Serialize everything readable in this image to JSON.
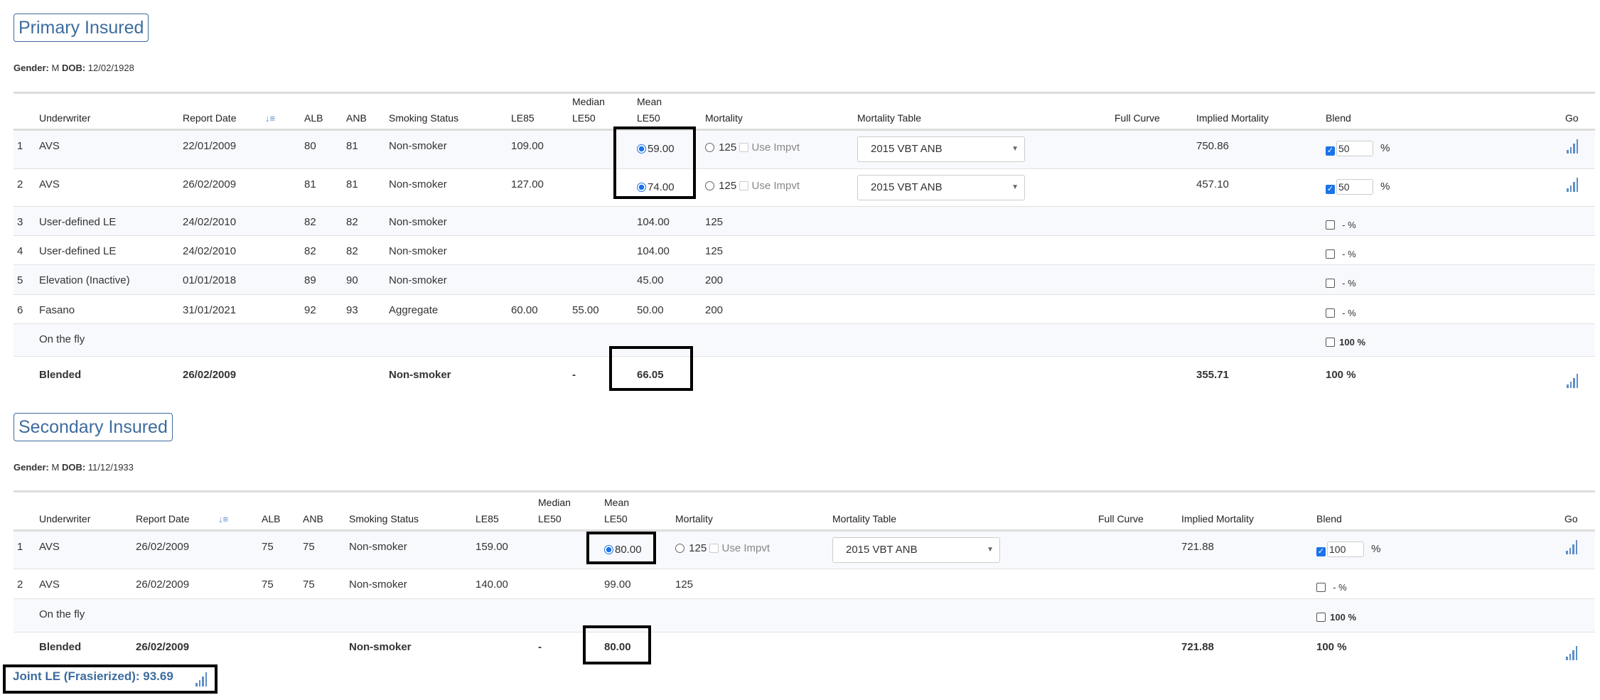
{
  "headers": {
    "underwriter": "Underwriter",
    "report_date": "Report Date",
    "alb": "ALB",
    "anb": "ANB",
    "smoking": "Smoking Status",
    "le85": "LE85",
    "median_1": "Median",
    "median_2": "LE50",
    "mean_1": "Mean",
    "mean_2": "LE50",
    "mortality": "Mortality",
    "mortality_table": "Mortality Table",
    "full_curve": "Full Curve",
    "implied": "Implied Mortality",
    "blend": "Blend",
    "go": "Go"
  },
  "icons": {
    "sort": "sort-descending-icon",
    "go": "bar-chart-icon",
    "select": "caret-down-icon"
  },
  "colors": {
    "accent": "#3d6c9e",
    "checkbox": "#1a73e8",
    "chart_icon": "#5b8fc7"
  },
  "use_impvt_label": "Use Impvt",
  "percent": "%",
  "sections": [
    {
      "title": "Primary Insured",
      "gender_label": "Gender:",
      "gender": "M",
      "dob_label": "DOB:",
      "dob": "12/02/1928",
      "rows": [
        {
          "idx": "1",
          "underwriter": "AVS",
          "report_date": "22/01/2009",
          "alb": "80",
          "anb": "81",
          "smoking": "Non-smoker",
          "le85": "109.00",
          "median": "",
          "mean": "59.00",
          "mean_radio": true,
          "mortality": "125",
          "mortality_radio": true,
          "use_impvt": true,
          "mortality_table": "2015 VBT ANB",
          "implied": "750.86",
          "blend_checked": true,
          "blend_value": "50",
          "go": true
        },
        {
          "idx": "2",
          "underwriter": "AVS",
          "report_date": "26/02/2009",
          "alb": "81",
          "anb": "81",
          "smoking": "Non-smoker",
          "le85": "127.00",
          "median": "",
          "mean": "74.00",
          "mean_radio": true,
          "mortality": "125",
          "mortality_radio": true,
          "use_impvt": true,
          "mortality_table": "2015 VBT ANB",
          "implied": "457.10",
          "blend_checked": true,
          "blend_value": "50",
          "go": true
        },
        {
          "idx": "3",
          "underwriter": "User-defined LE",
          "report_date": "24/02/2010",
          "alb": "82",
          "anb": "82",
          "smoking": "Non-smoker",
          "le85": "",
          "median": "",
          "mean": "104.00",
          "mortality": "125",
          "blend_checked": false,
          "blend_text": "- %"
        },
        {
          "idx": "4",
          "underwriter": "User-defined LE",
          "report_date": "24/02/2010",
          "alb": "82",
          "anb": "82",
          "smoking": "Non-smoker",
          "le85": "",
          "median": "",
          "mean": "104.00",
          "mortality": "125",
          "blend_checked": false,
          "blend_text": "- %"
        },
        {
          "idx": "5",
          "underwriter": "Elevation (Inactive)",
          "report_date": "01/01/2018",
          "alb": "89",
          "anb": "90",
          "smoking": "Non-smoker",
          "le85": "",
          "median": "",
          "mean": "45.00",
          "mortality": "200",
          "blend_checked": false,
          "blend_text": "- %"
        },
        {
          "idx": "6",
          "underwriter": "Fasano",
          "report_date": "31/01/2021",
          "alb": "92",
          "anb": "93",
          "smoking": "Aggregate",
          "le85": "60.00",
          "median": "55.00",
          "mean": "50.00",
          "mortality": "200",
          "blend_checked": false,
          "blend_text": "- %"
        },
        {
          "idx": "",
          "underwriter": "On the fly",
          "onthefly": true,
          "blend_checked": false,
          "blend_text": "100 %"
        }
      ],
      "blended": {
        "label": "Blended",
        "report_date": "26/02/2009",
        "smoking": "Non-smoker",
        "median": "-",
        "mean": "66.05",
        "implied": "355.71",
        "blend": "100 %"
      }
    },
    {
      "title": "Secondary Insured",
      "gender_label": "Gender:",
      "gender": "M",
      "dob_label": "DOB:",
      "dob": "11/12/1933",
      "rows": [
        {
          "idx": "1",
          "underwriter": "AVS",
          "report_date": "26/02/2009",
          "alb": "75",
          "anb": "75",
          "smoking": "Non-smoker",
          "le85": "159.00",
          "median": "",
          "mean": "80.00",
          "mean_radio": true,
          "mortality": "125",
          "mortality_radio": true,
          "use_impvt": true,
          "mortality_table": "2015 VBT ANB",
          "implied": "721.88",
          "blend_checked": true,
          "blend_value": "100",
          "go": true
        },
        {
          "idx": "2",
          "underwriter": "AVS",
          "report_date": "26/02/2009",
          "alb": "75",
          "anb": "75",
          "smoking": "Non-smoker",
          "le85": "140.00",
          "median": "",
          "mean": "99.00",
          "mortality": "125",
          "blend_checked": false,
          "blend_text": "- %"
        },
        {
          "idx": "",
          "underwriter": "On the fly",
          "onthefly": true,
          "blend_checked": false,
          "blend_text": "100 %"
        }
      ],
      "blended": {
        "label": "Blended",
        "report_date": "26/02/2009",
        "smoking": "Non-smoker",
        "median": "-",
        "mean": "80.00",
        "implied": "721.88",
        "blend": "100 %"
      }
    }
  ],
  "joint_le": {
    "label": "Joint LE (Frasierized):",
    "value": "93.69"
  }
}
